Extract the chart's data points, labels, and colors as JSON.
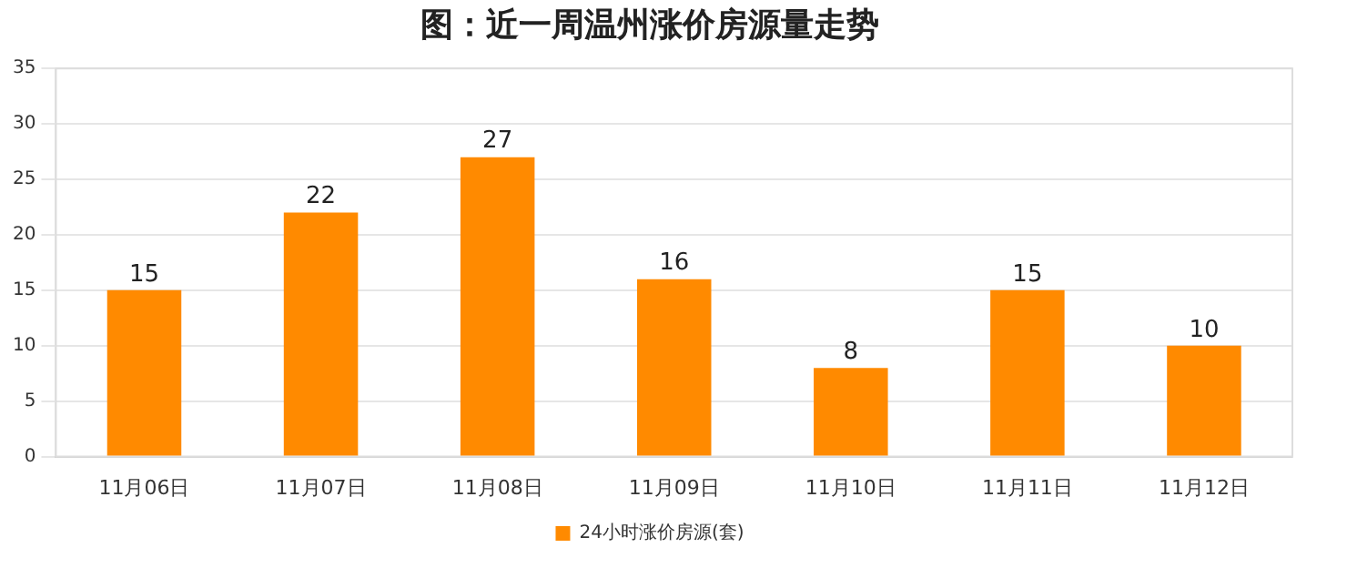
{
  "chart_data": {
    "type": "bar",
    "title": "图：近一周温州涨价房源量走势",
    "categories": [
      "11月06日",
      "11月07日",
      "11月08日",
      "11月09日",
      "11月10日",
      "11月11日",
      "11月12日"
    ],
    "series": [
      {
        "name": "24小时涨价房源(套)",
        "color": "#ff8a00",
        "values": [
          15,
          22,
          27,
          16,
          8,
          15,
          10
        ]
      }
    ],
    "ylim": [
      0,
      35
    ],
    "yticks": [
      0,
      5,
      10,
      15,
      20,
      25,
      30,
      35
    ],
    "grid": "y",
    "legend": "bottom",
    "data_labels": true
  }
}
